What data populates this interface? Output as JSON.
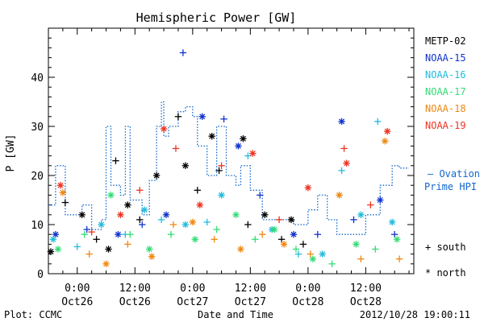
{
  "chart_data": {
    "type": "scatter",
    "title": "Hemispheric Power [GW]",
    "ylabel": "P [GW]",
    "xlabel": "Date and Time",
    "ylim": [
      0,
      50
    ],
    "y_ticks": [
      0,
      10,
      20,
      30,
      40
    ],
    "x_range": [
      "2012-10-25 18:00",
      "2012-10-28 22:00"
    ],
    "x_ticks": [
      {
        "t": "2012-10-26 00:00",
        "time": "0:00",
        "date": "Oct26"
      },
      {
        "t": "2012-10-26 12:00",
        "time": "12:00",
        "date": "Oct26"
      },
      {
        "t": "2012-10-27 00:00",
        "time": "0:00",
        "date": "Oct27"
      },
      {
        "t": "2012-10-27 12:00",
        "time": "12:00",
        "date": "Oct27"
      },
      {
        "t": "2012-10-28 00:00",
        "time": "0:00",
        "date": "Oct28"
      },
      {
        "t": "2012-10-28 12:00",
        "time": "12:00",
        "date": "Oct28"
      }
    ],
    "legend_placement": "right",
    "marker_legend": {
      "south": "+ south",
      "north": "* north"
    },
    "series": [
      {
        "name": "METP-02",
        "color": "#000000",
        "marker": "both",
        "points": [
          [
            "2012-10-25 18:30",
            4.5
          ],
          [
            "2012-10-25 21:30",
            14.5
          ],
          [
            "2012-10-26 01:00",
            12.0
          ],
          [
            "2012-10-26 04:00",
            7.0
          ],
          [
            "2012-10-26 06:30",
            5.0
          ],
          [
            "2012-10-26 08:00",
            23.0
          ],
          [
            "2012-10-26 10:30",
            14.0
          ],
          [
            "2012-10-26 13:00",
            11.0
          ],
          [
            "2012-10-26 16:30",
            20.0
          ],
          [
            "2012-10-26 21:00",
            32.0
          ],
          [
            "2012-10-26 22:30",
            22.0
          ],
          [
            "2012-10-27 01:00",
            17.0
          ],
          [
            "2012-10-27 04:00",
            28.0
          ],
          [
            "2012-10-27 05:30",
            21.0
          ],
          [
            "2012-10-27 10:30",
            27.5
          ],
          [
            "2012-10-27 11:30",
            10.0
          ],
          [
            "2012-10-27 15:00",
            12.0
          ],
          [
            "2012-10-27 18:30",
            7.0
          ],
          [
            "2012-10-27 20:30",
            11.0
          ],
          [
            "2012-10-27 23:00",
            6.0
          ]
        ]
      },
      {
        "name": "NOAA-15",
        "color": "#1133cc",
        "marker": "both",
        "points": [
          [
            "2012-10-25 19:30",
            8.0
          ],
          [
            "2012-10-26 02:00",
            9.0
          ],
          [
            "2012-10-26 08:30",
            8.0
          ],
          [
            "2012-10-26 13:30",
            10.0
          ],
          [
            "2012-10-26 18:30",
            12.0
          ],
          [
            "2012-10-26 22:00",
            45.0
          ],
          [
            "2012-10-27 02:00",
            32.0
          ],
          [
            "2012-10-27 06:30",
            31.5
          ],
          [
            "2012-10-27 09:30",
            26.0
          ],
          [
            "2012-10-27 14:00",
            16.0
          ],
          [
            "2012-10-27 21:00",
            8.0
          ],
          [
            "2012-10-28 02:00",
            8.0
          ],
          [
            "2012-10-28 07:00",
            31.0
          ],
          [
            "2012-10-28 09:30",
            11.0
          ],
          [
            "2012-10-28 15:00",
            15.0
          ],
          [
            "2012-10-28 18:00",
            8.0
          ]
        ]
      },
      {
        "name": "NOAA-16",
        "color": "#22bbdd",
        "marker": "both",
        "points": [
          [
            "2012-10-25 19:00",
            7.0
          ],
          [
            "2012-10-26 00:00",
            5.5
          ],
          [
            "2012-10-26 05:00",
            10.0
          ],
          [
            "2012-10-26 10:00",
            8.0
          ],
          [
            "2012-10-26 14:00",
            13.0
          ],
          [
            "2012-10-26 17:30",
            11.0
          ],
          [
            "2012-10-26 22:30",
            10.0
          ],
          [
            "2012-10-27 03:00",
            10.5
          ],
          [
            "2012-10-27 06:00",
            16.0
          ],
          [
            "2012-10-27 11:30",
            24.0
          ],
          [
            "2012-10-27 16:30",
            9.0
          ],
          [
            "2012-10-27 22:00",
            4.0
          ],
          [
            "2012-10-28 03:00",
            4.0
          ],
          [
            "2012-10-28 07:00",
            21.0
          ],
          [
            "2012-10-28 11:00",
            12.0
          ],
          [
            "2012-10-28 14:30",
            31.0
          ],
          [
            "2012-10-28 17:30",
            10.5
          ]
        ]
      },
      {
        "name": "NOAA-17",
        "color": "#33dd77",
        "marker": "both",
        "points": [
          [
            "2012-10-25 20:00",
            5.0
          ],
          [
            "2012-10-26 01:30",
            8.0
          ],
          [
            "2012-10-26 07:00",
            16.0
          ],
          [
            "2012-10-26 11:00",
            8.0
          ],
          [
            "2012-10-26 15:00",
            5.0
          ],
          [
            "2012-10-26 19:30",
            8.0
          ],
          [
            "2012-10-27 00:30",
            7.0
          ],
          [
            "2012-10-27 05:00",
            9.0
          ],
          [
            "2012-10-27 09:00",
            12.0
          ],
          [
            "2012-10-27 13:00",
            7.0
          ],
          [
            "2012-10-27 17:00",
            9.0
          ],
          [
            "2012-10-27 21:30",
            5.0
          ],
          [
            "2012-10-28 01:00",
            3.0
          ],
          [
            "2012-10-28 05:00",
            2.0
          ],
          [
            "2012-10-28 10:00",
            6.0
          ],
          [
            "2012-10-28 14:00",
            5.0
          ],
          [
            "2012-10-28 18:30",
            7.0
          ]
        ]
      },
      {
        "name": "NOAA-18",
        "color": "#ee8811",
        "marker": "both",
        "points": [
          [
            "2012-10-25 21:00",
            16.5
          ],
          [
            "2012-10-26 02:30",
            4.0
          ],
          [
            "2012-10-26 06:00",
            2.0
          ],
          [
            "2012-10-26 10:30",
            6.0
          ],
          [
            "2012-10-26 15:30",
            3.5
          ],
          [
            "2012-10-26 20:00",
            10.0
          ],
          [
            "2012-10-27 00:00",
            10.5
          ],
          [
            "2012-10-27 04:30",
            7.0
          ],
          [
            "2012-10-27 10:00",
            5.0
          ],
          [
            "2012-10-27 14:30",
            8.0
          ],
          [
            "2012-10-27 19:00",
            6.0
          ],
          [
            "2012-10-28 00:30",
            4.0
          ],
          [
            "2012-10-28 06:30",
            16.0
          ],
          [
            "2012-10-28 11:00",
            3.0
          ],
          [
            "2012-10-28 16:00",
            27.0
          ],
          [
            "2012-10-28 19:00",
            3.0
          ]
        ]
      },
      {
        "name": "NOAA-19",
        "color": "#ee3322",
        "marker": "both",
        "points": [
          [
            "2012-10-25 20:30",
            18.0
          ],
          [
            "2012-10-26 03:00",
            8.5
          ],
          [
            "2012-10-26 09:00",
            12.0
          ],
          [
            "2012-10-26 13:00",
            17.0
          ],
          [
            "2012-10-26 18:00",
            29.5
          ],
          [
            "2012-10-26 20:30",
            25.5
          ],
          [
            "2012-10-27 01:30",
            14.0
          ],
          [
            "2012-10-27 06:00",
            22.0
          ],
          [
            "2012-10-27 12:30",
            24.5
          ],
          [
            "2012-10-27 18:00",
            11.0
          ],
          [
            "2012-10-28 00:00",
            17.5
          ],
          [
            "2012-10-28 07:30",
            25.5
          ],
          [
            "2012-10-28 08:00",
            22.5
          ],
          [
            "2012-10-28 13:00",
            14.0
          ],
          [
            "2012-10-28 16:30",
            29.0
          ]
        ]
      }
    ],
    "ovation": {
      "name": "– Ovation Prime HPI",
      "color": "#1166cc",
      "steps": [
        [
          "2012-10-25 18:00",
          14.0
        ],
        [
          "2012-10-25 19:30",
          22.0
        ],
        [
          "2012-10-25 21:30",
          12.0
        ],
        [
          "2012-10-26 01:00",
          14.0
        ],
        [
          "2012-10-26 03:00",
          9.0
        ],
        [
          "2012-10-26 05:00",
          11.0
        ],
        [
          "2012-10-26 06:00",
          30.0
        ],
        [
          "2012-10-26 07:00",
          18.0
        ],
        [
          "2012-10-26 09:00",
          16.0
        ],
        [
          "2012-10-26 10:00",
          30.0
        ],
        [
          "2012-10-26 11:00",
          15.0
        ],
        [
          "2012-10-26 13:30",
          12.0
        ],
        [
          "2012-10-26 15:00",
          19.0
        ],
        [
          "2012-10-26 16:30",
          30.0
        ],
        [
          "2012-10-26 17:30",
          35.0
        ],
        [
          "2012-10-26 18:00",
          28.0
        ],
        [
          "2012-10-26 19:00",
          30.0
        ],
        [
          "2012-10-26 21:00",
          33.0
        ],
        [
          "2012-10-26 22:30",
          34.0
        ],
        [
          "2012-10-27 00:00",
          32.0
        ],
        [
          "2012-10-27 01:00",
          26.0
        ],
        [
          "2012-10-27 03:00",
          20.0
        ],
        [
          "2012-10-27 05:00",
          30.0
        ],
        [
          "2012-10-27 07:00",
          20.0
        ],
        [
          "2012-10-27 09:00",
          18.0
        ],
        [
          "2012-10-27 10:00",
          22.0
        ],
        [
          "2012-10-27 12:00",
          17.0
        ],
        [
          "2012-10-27 14:30",
          11.0
        ],
        [
          "2012-10-27 21:00",
          10.0
        ],
        [
          "2012-10-28 00:00",
          13.0
        ],
        [
          "2012-10-28 02:00",
          16.0
        ],
        [
          "2012-10-28 04:00",
          11.0
        ],
        [
          "2012-10-28 06:00",
          8.0
        ],
        [
          "2012-10-28 12:00",
          12.0
        ],
        [
          "2012-10-28 15:00",
          18.0
        ],
        [
          "2012-10-28 17:30",
          22.0
        ],
        [
          "2012-10-28 19:00",
          21.5
        ],
        [
          "2012-10-28 21:00",
          21.5
        ]
      ]
    }
  },
  "footer": {
    "left": "Plot: CCMC",
    "center": "Date and Time",
    "right": "2012/10/28 19:00:11"
  },
  "legend": {
    "ovation_line1": "– Ovation",
    "ovation_line2": "Prime HPI"
  }
}
